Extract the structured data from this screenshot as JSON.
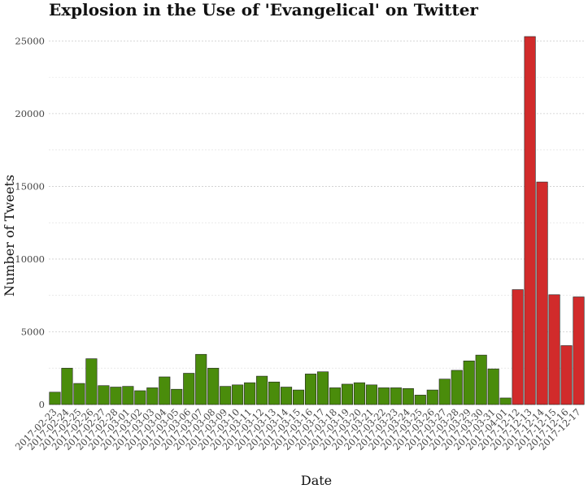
{
  "chart_data": {
    "type": "bar",
    "title": "Explosion in the Use of 'Evangelical' on Twitter",
    "xlabel": "Date",
    "ylabel": "Number of Tweets",
    "ylim": [
      0,
      25300
    ],
    "yticks": [
      0,
      5000,
      10000,
      15000,
      20000,
      25000
    ],
    "grid": true,
    "colors": {
      "early": "#4a8c0b",
      "late": "#d12b2b",
      "outline": "#222222"
    },
    "categories": [
      "2017-02-23",
      "2017-02-24",
      "2017-02-25",
      "2017-02-26",
      "2017-02-27",
      "2017-02-28",
      "2017-03-01",
      "2017-03-02",
      "2017-03-03",
      "2017-03-04",
      "2017-03-05",
      "2017-03-06",
      "2017-03-07",
      "2017-03-08",
      "2017-03-09",
      "2017-03-10",
      "2017-03-11",
      "2017-03-12",
      "2017-03-13",
      "2017-03-14",
      "2017-03-15",
      "2017-03-16",
      "2017-03-17",
      "2017-03-18",
      "2017-03-19",
      "2017-03-20",
      "2017-03-21",
      "2017-03-22",
      "2017-03-23",
      "2017-03-24",
      "2017-03-25",
      "2017-03-26",
      "2017-03-27",
      "2017-03-28",
      "2017-03-29",
      "2017-03-30",
      "2017-03-31",
      "2017-04-01",
      "2017-12-12",
      "2017-12-13",
      "2017-12-14",
      "2017-12-15",
      "2017-12-16",
      "2017-12-17"
    ],
    "values": [
      850,
      2500,
      1450,
      3150,
      1300,
      1200,
      1250,
      950,
      1150,
      1900,
      1050,
      2150,
      3450,
      2500,
      1250,
      1350,
      1500,
      1950,
      1550,
      1200,
      1000,
      2100,
      2250,
      1150,
      1400,
      1500,
      1350,
      1150,
      1150,
      1100,
      650,
      1000,
      1750,
      2350,
      3000,
      3400,
      2450,
      450,
      7900,
      25300,
      15300,
      7550,
      4050,
      7400
    ],
    "series_group": [
      "early",
      "early",
      "early",
      "early",
      "early",
      "early",
      "early",
      "early",
      "early",
      "early",
      "early",
      "early",
      "early",
      "early",
      "early",
      "early",
      "early",
      "early",
      "early",
      "early",
      "early",
      "early",
      "early",
      "early",
      "early",
      "early",
      "early",
      "early",
      "early",
      "early",
      "early",
      "early",
      "early",
      "early",
      "early",
      "early",
      "early",
      "early",
      "late",
      "late",
      "late",
      "late",
      "late",
      "late"
    ]
  }
}
